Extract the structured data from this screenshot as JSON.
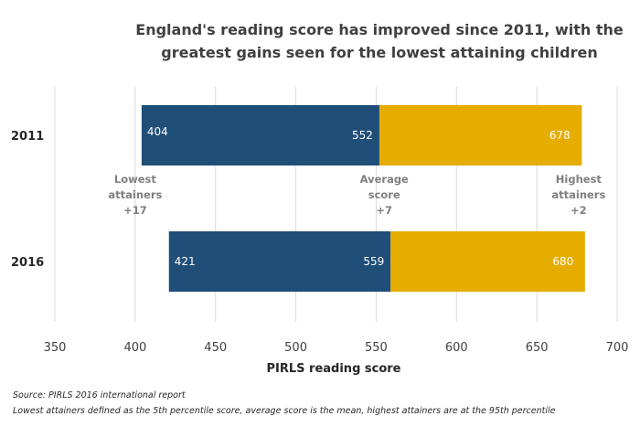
{
  "chart_data": {
    "type": "bar",
    "title_lines": [
      "England's reading score has improved since 2011, with the",
      "greatest gains seen for the lowest attaining children"
    ],
    "xlabel": "PIRLS reading score",
    "ylabel": "",
    "xlim": [
      350,
      700
    ],
    "xticks": [
      "350",
      "400",
      "450",
      "500",
      "550",
      "600",
      "650",
      "700"
    ],
    "grid": true,
    "categories": [
      "2011",
      "2016"
    ],
    "series": [
      {
        "values": [
          [
            404,
            552
          ],
          [
            421,
            559
          ]
        ],
        "color": "#1f4e79"
      },
      {
        "values": [
          [
            552,
            678
          ],
          [
            559,
            680
          ]
        ],
        "color": "#e6ac00"
      }
    ],
    "data_labels": [
      [
        "404",
        "552",
        "678"
      ],
      [
        "421",
        "559",
        "680"
      ]
    ],
    "annotations": [
      {
        "lines": [
          "Lowest",
          "attainers",
          "+17"
        ],
        "value": 404
      },
      {
        "lines": [
          "Average",
          "score",
          "+7"
        ],
        "value": 559
      },
      {
        "lines": [
          "Highest",
          "attainers",
          "+2"
        ],
        "value": 680
      }
    ]
  },
  "footnotes": {
    "source": "Source: PIRLS 2016 international report",
    "definition": "Lowest attainers defined as the 5th percentile score, average score is the mean, highest attainers are at the 95th percentile"
  }
}
